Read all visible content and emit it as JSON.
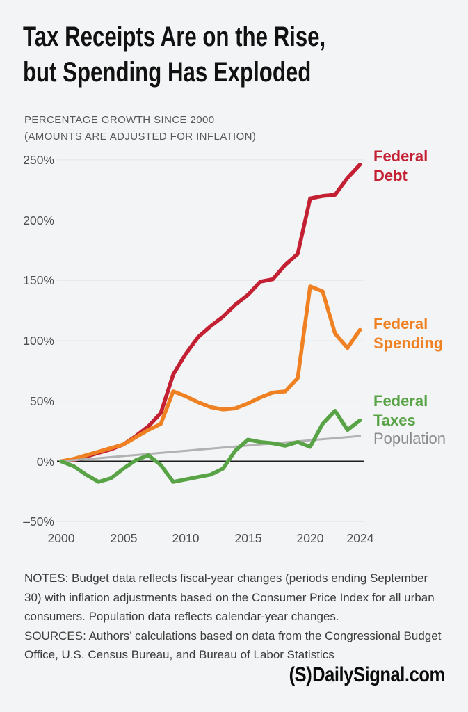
{
  "header": {
    "title_line1": "Tax Receipts Are on the Rise,",
    "title_line2": "but Spending Has Exploded",
    "subtitle_line1": "PERCENTAGE GROWTH SINCE 2000",
    "subtitle_line2": "(AMOUNTS ARE ADJUSTED FOR INFLATION)"
  },
  "chart_data": {
    "type": "line",
    "title": "Tax Receipts Are on the Rise, but Spending Has Exploded",
    "subtitle": "PERCENTAGE GROWTH SINCE 2000 (AMOUNTS ARE ADJUSTED FOR INFLATION)",
    "xlabel": "",
    "ylabel": "Percentage growth since 2000 (%)",
    "grid": true,
    "zero_line": true,
    "legend_position": "right-of-lines",
    "ylim": [
      -50,
      250
    ],
    "y_tick_values": [
      250,
      200,
      150,
      100,
      50,
      0,
      -50
    ],
    "y_tick_labels": [
      "250%",
      "200%",
      "150%",
      "100%",
      "50%",
      "0%",
      "–50%"
    ],
    "x_tick_years": [
      2000,
      2005,
      2010,
      2015,
      2020,
      2024
    ],
    "x_tick_labels": [
      "2000",
      "2005",
      "2010",
      "2015",
      "2020",
      "2024"
    ],
    "x": [
      2000,
      2001,
      2002,
      2003,
      2004,
      2005,
      2006,
      2007,
      2008,
      2009,
      2010,
      2011,
      2012,
      2013,
      2014,
      2015,
      2016,
      2017,
      2018,
      2019,
      2020,
      2021,
      2022,
      2023,
      2024
    ],
    "series": [
      {
        "id": "federal-debt",
        "name": "Federal Debt",
        "label_lines": [
          "Federal",
          "Debt"
        ],
        "color": "#c32133",
        "label_color": "#c32133",
        "line_width": 5.5,
        "values": [
          0,
          1,
          4,
          7,
          10,
          14,
          21,
          29,
          40,
          72,
          89,
          103,
          112,
          120,
          130,
          138,
          149,
          151,
          163,
          172,
          218,
          220,
          221,
          235,
          246
        ]
      },
      {
        "id": "federal-spending",
        "name": "Federal Spending",
        "label_lines": [
          "Federal",
          "Spending"
        ],
        "color": "#ef8122",
        "label_color": "#ef8122",
        "line_width": 5.5,
        "values": [
          0,
          2,
          5,
          8,
          11,
          14,
          20,
          26,
          31,
          58,
          54,
          49,
          45,
          43,
          44,
          48,
          53,
          57,
          58,
          69,
          145,
          141,
          106,
          94,
          109
        ]
      },
      {
        "id": "federal-taxes",
        "name": "Federal Taxes",
        "label_lines": [
          "Federal",
          "Taxes"
        ],
        "color": "#58a345",
        "label_color": "#58a345",
        "line_width": 5.5,
        "values": [
          0,
          -4,
          -11,
          -17,
          -14,
          -6,
          1,
          5,
          -3,
          -17,
          -15,
          -13,
          -11,
          -6,
          9,
          18,
          16,
          15,
          13,
          16,
          12,
          31,
          42,
          26,
          34
        ]
      },
      {
        "id": "population",
        "name": "Population",
        "label_lines": [
          "Population"
        ],
        "color": "#b2b2b2",
        "label_color": "#8b8b8b",
        "line_width": 3,
        "values": [
          0,
          0.9,
          1.8,
          2.6,
          3.5,
          4.4,
          5.2,
          6.1,
          7,
          7.9,
          8.7,
          9.6,
          10.5,
          11.4,
          12.2,
          13.1,
          14,
          14.9,
          15.7,
          16.6,
          17.5,
          18.4,
          19.2,
          20.1,
          21
        ]
      }
    ]
  },
  "notes": {
    "lines": [
      "NOTES: Budget data reflects fiscal-year changes (periods ending September",
      "30) with inflation adjustments based on the Consumer Price Index for all urban",
      "consumers. Population data reflects calendar-year changes.",
      "SOURCES: Authors’ calculations based on data from the Congressional Budget",
      "Office, U.S. Census Bureau, and Bureau of Labor Statistics"
    ]
  },
  "footer": {
    "logo_mark": "(S)",
    "logo_text": "DailySignal.com"
  }
}
